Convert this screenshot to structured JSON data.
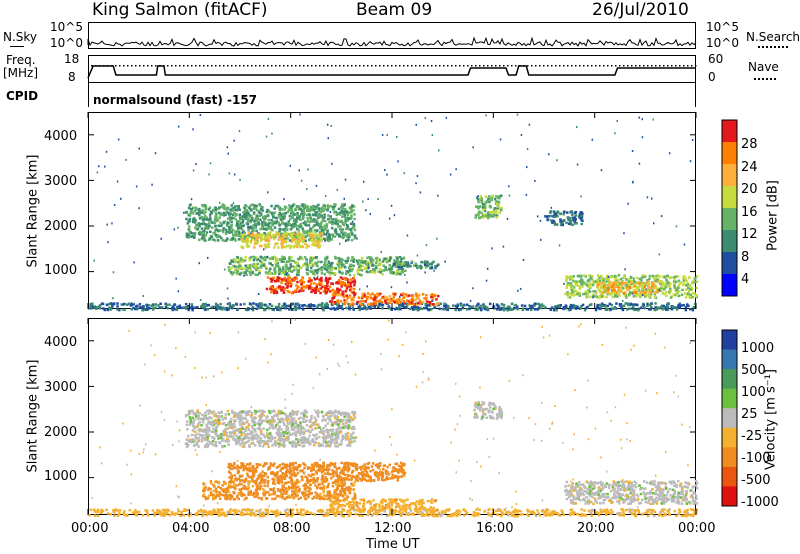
{
  "header": {
    "radar": "King Salmon (fitACF)",
    "beam": "Beam 09",
    "date": "26/Jul/2010"
  },
  "noise_panel": {
    "left_label": "N.Sky",
    "right_label": "N.Search",
    "ticks_left": [
      "10^5",
      "10^0"
    ],
    "ticks_right": [
      "10^5",
      "10^0"
    ]
  },
  "freq_panel": {
    "left_label_1": "Freq.",
    "left_label_2": "[MHz]",
    "ticks_left": [
      "18",
      "8"
    ],
    "ticks_right": [
      "60",
      "0"
    ],
    "right_label": "Nave"
  },
  "cpid": {
    "label": "CPID",
    "text": "normalsound (fast) -157"
  },
  "axes": {
    "xlabel": "Time UT",
    "ylabel": "Slant Range [km]",
    "xticks": [
      "00:00",
      "04:00",
      "08:00",
      "12:00",
      "16:00",
      "20:00",
      "00:00"
    ],
    "yticks": [
      "1000",
      "2000",
      "3000",
      "4000"
    ]
  },
  "colorbars": {
    "power": {
      "label": "Power [dB]",
      "ticks": [
        "28",
        "24",
        "20",
        "16",
        "12",
        "8",
        "4"
      ],
      "colors": [
        "#e31a1c",
        "#ff7f00",
        "#fdae3b",
        "#c6dc3c",
        "#66b266",
        "#3c8c70",
        "#1e4fa0",
        "#0000ff"
      ]
    },
    "velocity": {
      "label": "Velocity [m s⁻¹]",
      "ticks": [
        "1000",
        "500",
        "100",
        "25",
        "-25",
        "-100",
        "-500",
        "-1000"
      ],
      "colors": [
        "#2040a0",
        "#3878b0",
        "#4a9a5a",
        "#6cc040",
        "#bbbbbb",
        "#f5b030",
        "#f08c20",
        "#ea5510",
        "#e01010"
      ]
    }
  },
  "chart_data": [
    {
      "type": "heatmap",
      "title": "Power [dB]",
      "xlabel": "Time UT",
      "ylabel": "Slant Range [km]",
      "xlim_hours": [
        0,
        24
      ],
      "ylim_km": [
        180,
        4500
      ],
      "blobs": [
        {
          "t0": 0.0,
          "t1": 24.0,
          "r0": 180,
          "r1": 330,
          "value": 6
        },
        {
          "t0": 3.8,
          "t1": 10.5,
          "r0": 1700,
          "r1": 2500,
          "value": 10
        },
        {
          "t0": 6.0,
          "t1": 9.2,
          "r0": 1550,
          "r1": 1900,
          "value": 18
        },
        {
          "t0": 5.5,
          "t1": 12.5,
          "r0": 950,
          "r1": 1350,
          "value": 12
        },
        {
          "t0": 7.0,
          "t1": 10.5,
          "r0": 550,
          "r1": 900,
          "value": 26
        },
        {
          "t0": 9.5,
          "t1": 13.8,
          "r0": 300,
          "r1": 550,
          "value": 24
        },
        {
          "t0": 12.0,
          "t1": 13.8,
          "r0": 1100,
          "r1": 1250,
          "value": 8
        },
        {
          "t0": 15.2,
          "t1": 16.3,
          "r0": 2200,
          "r1": 2700,
          "value": 12
        },
        {
          "t0": 18.0,
          "t1": 19.5,
          "r0": 2050,
          "r1": 2350,
          "value": 6
        },
        {
          "t0": 18.8,
          "t1": 24.0,
          "r0": 450,
          "r1": 950,
          "value": 14
        },
        {
          "t0": 20.0,
          "t1": 22.5,
          "r0": 550,
          "r1": 800,
          "value": 20
        }
      ]
    },
    {
      "type": "heatmap",
      "title": "Velocity [m s⁻¹]",
      "xlabel": "Time UT",
      "ylabel": "Slant Range [km]",
      "xlim_hours": [
        0,
        24
      ],
      "ylim_km": [
        180,
        4500
      ],
      "blobs": [
        {
          "t0": 3.8,
          "t1": 10.5,
          "r0": 1700,
          "r1": 2500,
          "value": 0
        },
        {
          "t0": 5.5,
          "t1": 12.5,
          "r0": 950,
          "r1": 1350,
          "value": -150
        },
        {
          "t0": 4.5,
          "t1": 10.5,
          "r0": 550,
          "r1": 950,
          "value": -120
        },
        {
          "t0": 9.5,
          "t1": 13.8,
          "r0": 300,
          "r1": 550,
          "value": -80
        },
        {
          "t0": 15.2,
          "t1": 16.3,
          "r0": 2300,
          "r1": 2700,
          "value": 0
        },
        {
          "t0": 18.8,
          "t1": 24.0,
          "r0": 450,
          "r1": 950,
          "value": 0
        },
        {
          "t0": 0.0,
          "t1": 24.0,
          "r0": 180,
          "r1": 330,
          "value": -50
        }
      ]
    }
  ]
}
